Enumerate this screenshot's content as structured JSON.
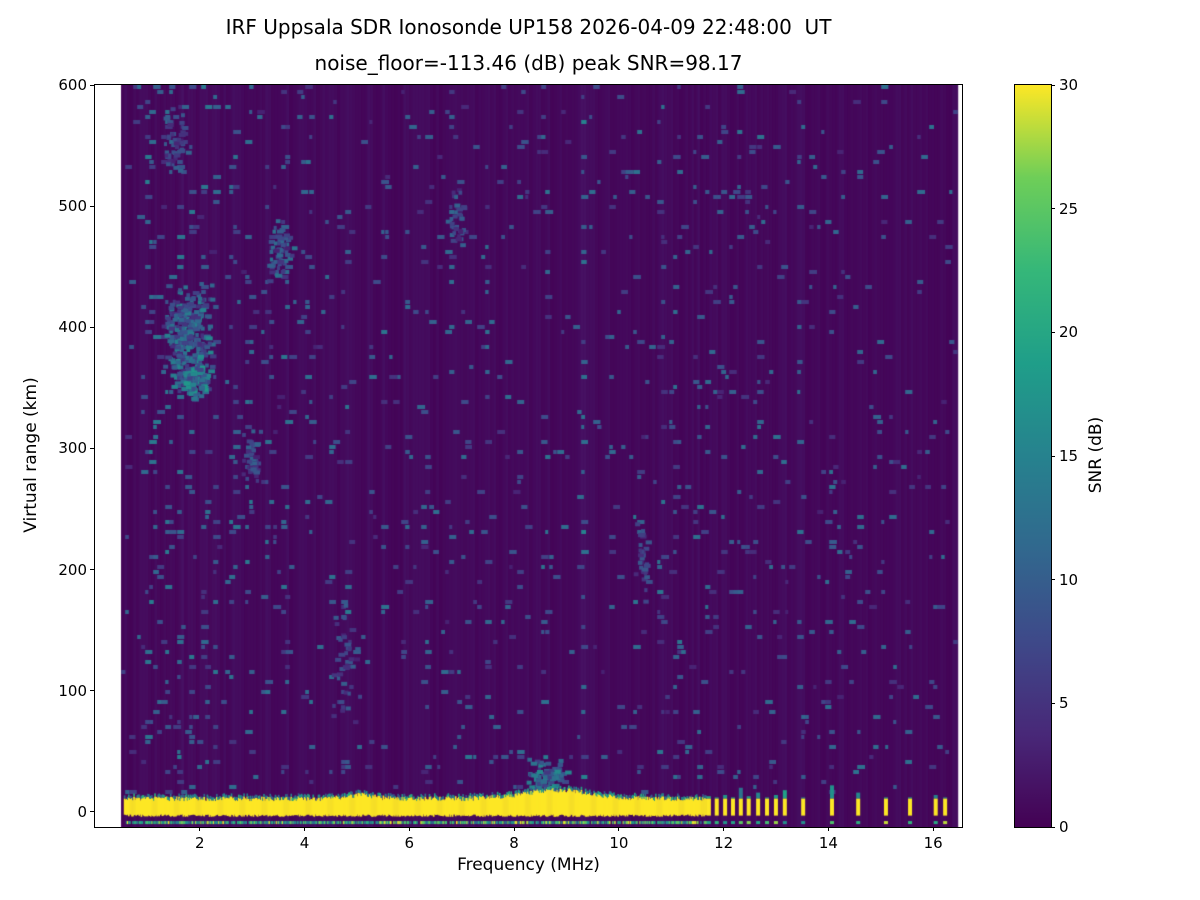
{
  "chart_data": {
    "type": "heatmap",
    "title": "IRF Uppsala SDR Ionosonde UP158 2026-04-09 22:48:00  UT",
    "subtitle": "noise_floor=-113.46 (dB) peak SNR=98.17",
    "station": "UP158",
    "timestamp_ut": "2026-04-09 22:48:00",
    "noise_floor_db": -113.46,
    "peak_snr_db": 98.17,
    "xlabel": "Frequency (MHz)",
    "ylabel": "Virtual range (km)",
    "xlim": [
      0,
      16.55
    ],
    "ylim": [
      -12.4,
      600
    ],
    "xticks": [
      2,
      4,
      6,
      8,
      10,
      12,
      14,
      16
    ],
    "yticks": [
      0,
      100,
      200,
      300,
      400,
      500,
      600
    ],
    "grid": false,
    "colorbar": {
      "label": "SNR (dB)",
      "min": 0,
      "max": 30,
      "ticks": [
        0,
        5,
        10,
        15,
        20,
        25,
        30
      ]
    },
    "colormap": "viridis",
    "colormap_stops": [
      [
        0,
        "#440154"
      ],
      [
        0.125,
        "#482878"
      ],
      [
        0.25,
        "#3e4989"
      ],
      [
        0.375,
        "#31688e"
      ],
      [
        0.5,
        "#26828e"
      ],
      [
        0.625,
        "#1f9e89"
      ],
      [
        0.75,
        "#35b779"
      ],
      [
        0.875,
        "#6ece58"
      ],
      [
        1,
        "#fde725"
      ]
    ],
    "freq_range_mhz": [
      0.5,
      16.45
    ],
    "ground_echo": {
      "freq_start": 0.55,
      "freq_end": 11.66,
      "km_bottom": -3,
      "km_top": 11,
      "bulge_center_mhz": 8.8,
      "bulge_top_km": 18,
      "snr_db": 30
    },
    "bottom_line_km": -7.5,
    "pulses": {
      "freqs_mhz": [
        11.68,
        11.83,
        11.99,
        12.14,
        12.29,
        12.44,
        12.62,
        12.79,
        12.96,
        13.13,
        13.48,
        14.03,
        14.53,
        15.06,
        15.52,
        16.01,
        16.19
      ],
      "top_km": [
        13,
        12,
        14,
        12,
        20,
        13,
        16,
        12,
        14,
        18,
        12,
        22,
        16,
        12,
        12,
        14,
        12
      ]
    },
    "rfi_stripes": [
      {
        "f": 1.03,
        "d": 0.45
      },
      {
        "f": 1.2,
        "d": 0.3
      },
      {
        "f": 1.4,
        "d": 0.3
      },
      {
        "f": 1.62,
        "d": 0.35
      },
      {
        "f": 1.85,
        "d": 0.3
      },
      {
        "f": 2.1,
        "d": 0.25
      },
      {
        "f": 2.3,
        "d": 0.3
      },
      {
        "f": 2.62,
        "d": 0.25
      },
      {
        "f": 2.95,
        "d": 0.3
      },
      {
        "f": 3.3,
        "d": 0.3
      },
      {
        "f": 3.62,
        "d": 0.25
      },
      {
        "f": 4.1,
        "d": 0.2
      },
      {
        "f": 4.5,
        "d": 0.2
      },
      {
        "f": 4.78,
        "d": 0.25
      },
      {
        "f": 5.2,
        "d": 0.2
      },
      {
        "f": 5.5,
        "d": 0.22
      },
      {
        "f": 5.95,
        "d": 0.15
      },
      {
        "f": 6.35,
        "d": 0.2
      },
      {
        "f": 6.8,
        "d": 0.25
      },
      {
        "f": 7.1,
        "d": 0.2
      },
      {
        "f": 7.5,
        "d": 0.2
      },
      {
        "f": 8.1,
        "d": 0.15
      },
      {
        "f": 8.6,
        "d": 0.18
      },
      {
        "f": 9.33,
        "d": 0.5
      },
      {
        "f": 9.85,
        "d": 0.2
      },
      {
        "f": 10.35,
        "d": 0.25
      },
      {
        "f": 10.8,
        "d": 0.2
      },
      {
        "f": 11.1,
        "d": 0.22
      },
      {
        "f": 11.5,
        "d": 0.2
      },
      {
        "f": 11.68,
        "d": 0.15
      },
      {
        "f": 11.83,
        "d": 0.12
      },
      {
        "f": 11.99,
        "d": 0.15
      },
      {
        "f": 12.14,
        "d": 0.12
      },
      {
        "f": 12.29,
        "d": 0.15
      },
      {
        "f": 12.44,
        "d": 0.12
      },
      {
        "f": 12.62,
        "d": 0.15
      },
      {
        "f": 12.79,
        "d": 0.12
      },
      {
        "f": 12.96,
        "d": 0.12
      },
      {
        "f": 13.13,
        "d": 0.12
      },
      {
        "f": 13.48,
        "d": 0.15
      },
      {
        "f": 14.03,
        "d": 0.18
      },
      {
        "f": 14.53,
        "d": 0.12
      },
      {
        "f": 15.06,
        "d": 0.1
      },
      {
        "f": 15.52,
        "d": 0.1
      },
      {
        "f": 16.01,
        "d": 0.12
      }
    ],
    "echo_clusters": [
      {
        "f": 1.75,
        "km": 390,
        "df": 0.5,
        "dkm": 48,
        "n": 300,
        "vmin": 4,
        "vmax": 16
      },
      {
        "f": 1.9,
        "km": 360,
        "df": 0.25,
        "dkm": 20,
        "n": 120,
        "vmin": 6,
        "vmax": 18
      },
      {
        "f": 1.5,
        "km": 555,
        "df": 0.25,
        "dkm": 35,
        "n": 45,
        "vmin": 3,
        "vmax": 11
      },
      {
        "f": 3.5,
        "km": 462,
        "df": 0.28,
        "dkm": 32,
        "n": 60,
        "vmin": 3,
        "vmax": 13
      },
      {
        "f": 2.95,
        "km": 295,
        "df": 0.2,
        "dkm": 25,
        "n": 40,
        "vmin": 3,
        "vmax": 11
      },
      {
        "f": 6.85,
        "km": 490,
        "df": 0.18,
        "dkm": 28,
        "n": 35,
        "vmin": 3,
        "vmax": 11
      },
      {
        "f": 8.6,
        "km": 32,
        "df": 0.45,
        "dkm": 18,
        "n": 80,
        "vmin": 5,
        "vmax": 16
      },
      {
        "f": 4.75,
        "km": 120,
        "df": 0.3,
        "dkm": 60,
        "n": 40,
        "vmin": 3,
        "vmax": 10
      },
      {
        "f": 10.4,
        "km": 210,
        "df": 0.15,
        "dkm": 40,
        "n": 30,
        "vmin": 3,
        "vmax": 10
      }
    ],
    "noise": {
      "base_speckle_prob": 0.025,
      "stripe_prob_gain": 0.28,
      "seed": 20260409
    }
  }
}
